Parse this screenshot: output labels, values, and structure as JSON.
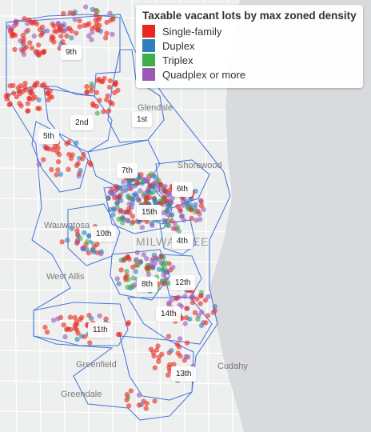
{
  "legend": {
    "title": "Taxable vacant lots by max zoned density",
    "items": [
      {
        "label": "Single-family",
        "color": "#e8281e"
      },
      {
        "label": "Duplex",
        "color": "#2f7ebd"
      },
      {
        "label": "Triplex",
        "color": "#3fae49"
      },
      {
        "label": "Quadplex or more",
        "color": "#9b59b6"
      }
    ]
  },
  "districts": [
    "9th",
    "2nd",
    "1st",
    "5th",
    "7th",
    "6th",
    "15th",
    "10th",
    "4th",
    "8th",
    "12th",
    "14th",
    "11th",
    "13th"
  ],
  "places": [
    "Glendale",
    "Shorewood",
    "Wauwatosa",
    "MILWAUKEE",
    "West Allis",
    "Greenfield",
    "Cudahy",
    "Greendale"
  ],
  "colors": {
    "lake": "#d8dadd",
    "land": "#eef0f0",
    "boundary": "#3366d6"
  }
}
